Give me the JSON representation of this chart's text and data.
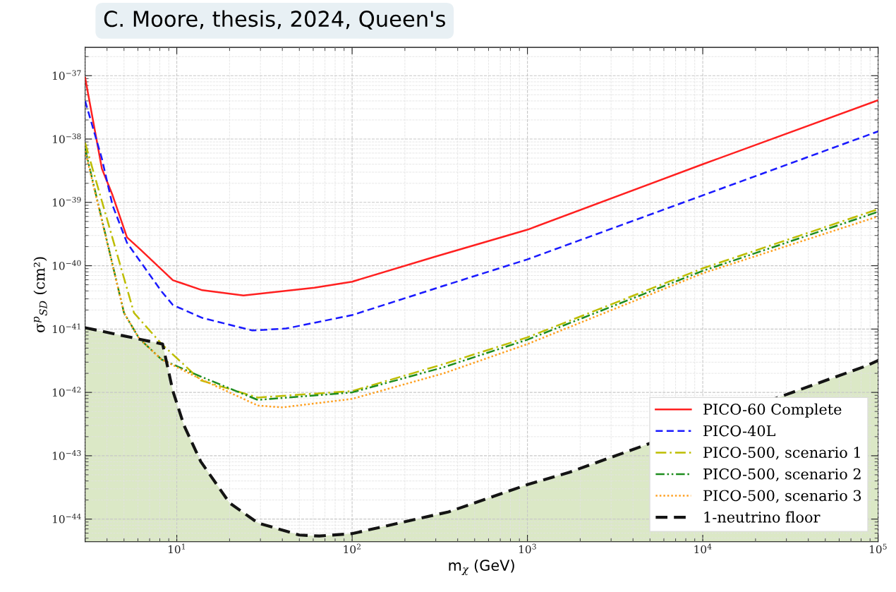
{
  "chart_data": {
    "type": "line",
    "annotations": [
      "C. Moore, thesis, 2024, Queen's"
    ],
    "xlabel": "m$_{χ}$ (GeV)",
    "ylabel": "σ$^{p}$$_{SD}$ (cm²)",
    "log": "xy",
    "grid": true,
    "legend": "bottom right",
    "xlim": [
      3,
      100000
    ],
    "ylim": [
      4.4e-45,
      2.8e-37
    ],
    "xticks": [
      {
        "value": 10,
        "label": "10$^{1}$"
      },
      {
        "value": 100,
        "label": "10$^{2}$"
      },
      {
        "value": 1000,
        "label": "10$^{3}$"
      },
      {
        "value": 10000,
        "label": "10$^{4}$"
      },
      {
        "value": 100000,
        "label": "10$^{5}$"
      }
    ],
    "yticks": [
      {
        "value": 1e-44,
        "label": "10$^{−44}$"
      },
      {
        "value": 1e-43,
        "label": "10$^{−43}$"
      },
      {
        "value": 1e-42,
        "label": "10$^{−42}$"
      },
      {
        "value": 1e-41,
        "label": "10$^{−41}$"
      },
      {
        "value": 1e-40,
        "label": "10$^{−40}$"
      },
      {
        "value": 1e-39,
        "label": "10$^{−39}$"
      },
      {
        "value": 1e-38,
        "label": "10$^{−38}$"
      },
      {
        "value": 1e-37,
        "label": "10$^{−37}$"
      }
    ],
    "series": [
      {
        "name": "PICO-60 Complete",
        "color": "#ff2020",
        "line_style": "solid",
        "x": [
          3,
          3.74,
          4.3,
          5.2,
          6.2,
          9.5,
          14,
          24,
          61,
          100,
          300,
          1000,
          10000,
          100000
        ],
        "values": [
          9.3e-38,
          3.4e-39,
          1.3e-39,
          2.8e-40,
          1.8e-40,
          5.9e-41,
          4.1e-41,
          3.4e-41,
          4.5e-41,
          5.6e-41,
          1.4e-40,
          3.7e-40,
          4e-39,
          4.1e-38
        ]
      },
      {
        "name": "PICO-40L",
        "color": "#1a1aff",
        "line_style": "dashed",
        "x": [
          3,
          3.74,
          4.3,
          5.2,
          8.2,
          9.5,
          14,
          27,
          42,
          100,
          355,
          1000,
          10000,
          100000
        ],
        "values": [
          4e-38,
          4.9e-39,
          9e-40,
          2.3e-40,
          3.9e-41,
          2.4e-41,
          1.5e-41,
          9.5e-42,
          1.02e-41,
          1.66e-41,
          5.1e-41,
          1.26e-40,
          1.29e-39,
          1.32e-38
        ]
      },
      {
        "name": "PICO-500, scenario 1",
        "color": "#bdbd00",
        "line_style": "dashdot",
        "x": [
          3,
          5.7,
          8.2,
          13.7,
          29,
          100,
          333,
          1000,
          10000,
          100000
        ],
        "values": [
          8.7e-39,
          1.8e-41,
          5.8e-42,
          1.55e-42,
          8.3e-43,
          1.05e-42,
          2.8e-42,
          7.4e-42,
          9.1e-41,
          7.8e-40
        ]
      },
      {
        "name": "PICO-500, scenario 2",
        "color": "#1e8c1e",
        "line_style": "dashdotdot",
        "x": [
          3,
          5.0,
          6.1,
          8.2,
          13.7,
          29,
          100,
          333,
          1000,
          10000,
          100000
        ],
        "values": [
          7e-39,
          1.8e-41,
          7.1e-42,
          3.3e-42,
          1.78e-42,
          7.6e-43,
          1e-42,
          2.5e-42,
          6.8e-42,
          8.3e-41,
          7.1e-40
        ]
      },
      {
        "name": "PICO-500, scenario 3",
        "color": "#ffa020",
        "line_style": "dotted",
        "x": [
          3,
          5.0,
          6.1,
          8.2,
          13.7,
          29,
          40,
          100,
          333,
          1000,
          10000,
          100000
        ],
        "values": [
          6.5e-39,
          1.8e-41,
          7.1e-42,
          3.3e-42,
          1.62e-42,
          6.2e-43,
          5.8e-43,
          7.9e-43,
          2e-42,
          5.8e-42,
          7.6e-41,
          6e-40
        ]
      },
      {
        "name": "1-neutrino floor",
        "type": "area",
        "color": "#141414",
        "line_style": "dashed",
        "x": [
          3,
          8.3,
          9.5,
          11,
          13.7,
          20,
          29,
          50,
          65,
          100,
          355,
          1000,
          1740,
          85000,
          100000
        ],
        "values": [
          1.05e-41,
          5.8e-42,
          1.05e-42,
          3e-43,
          8.1e-44,
          1.8e-44,
          8.7e-45,
          5.6e-45,
          5.4e-45,
          5.9e-45,
          1.3e-44,
          3.5e-44,
          5.5e-44,
          2.6e-42,
          3.2e-42
        ]
      }
    ]
  }
}
